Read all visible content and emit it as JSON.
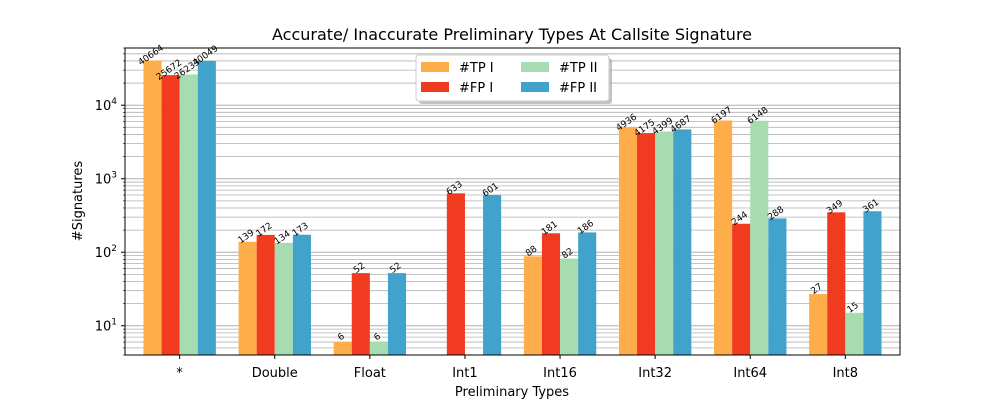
{
  "chart_data": {
    "type": "bar",
    "title": "Accurate/ Inaccurate Preliminary Types At Callsite Signature",
    "xlabel": "Preliminary Types",
    "ylabel": "#Signatures",
    "yscale": "log",
    "ylim": [
      4,
      60000
    ],
    "grid": true,
    "legend_position": "top-center",
    "categories": [
      "*",
      "Double",
      "Float",
      "Int1",
      "Int16",
      "Int32",
      "Int64",
      "Int8"
    ],
    "series": [
      {
        "name": "#TP I",
        "color": "#fdae4b",
        "values": [
          40664,
          139,
          6,
          null,
          88,
          4936,
          6197,
          27
        ]
      },
      {
        "name": "#FP I",
        "color": "#f03b20",
        "values": [
          25672,
          172,
          52,
          633,
          181,
          4175,
          244,
          349
        ]
      },
      {
        "name": "#TP II",
        "color": "#a6dcb0",
        "values": [
          26233,
          134,
          6,
          null,
          82,
          4399,
          6148,
          15
        ]
      },
      {
        "name": "#FP II",
        "color": "#41a2cb",
        "values": [
          40049,
          173,
          52,
          601,
          186,
          4687,
          288,
          361
        ]
      }
    ],
    "yticks": [
      {
        "value": 10,
        "base": "10",
        "exp": "1"
      },
      {
        "value": 100,
        "base": "10",
        "exp": "2"
      },
      {
        "value": 1000,
        "base": "10",
        "exp": "3"
      },
      {
        "value": 10000,
        "base": "10",
        "exp": "4"
      }
    ]
  }
}
